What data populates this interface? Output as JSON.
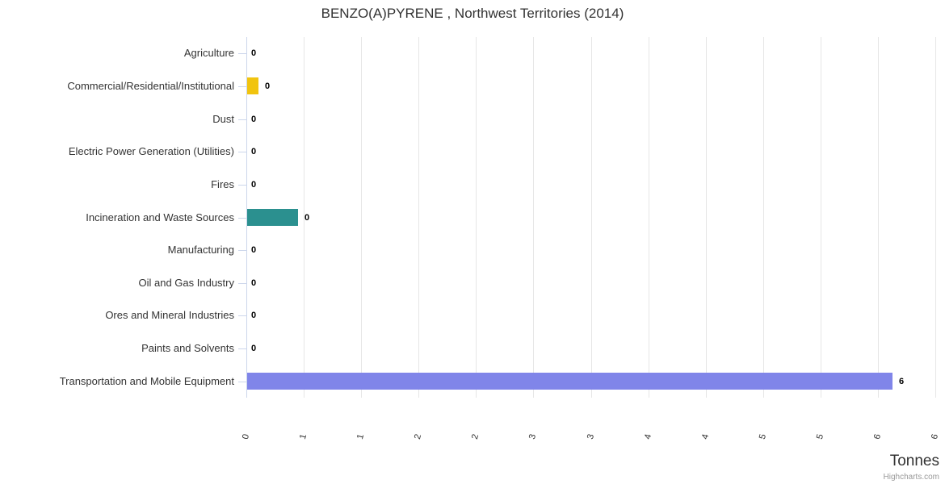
{
  "credit": "Highcharts.com",
  "colors": {
    "axis_line": "#ccd6eb",
    "grid_line": "#e6e6e6",
    "title_text": "#333333",
    "label_text": "#333333",
    "data_label_text": "#000000",
    "credit_text": "#999999"
  },
  "chart_data": {
    "type": "bar",
    "orientation": "horizontal",
    "title": "BENZO(A)PYRENE , Northwest Territories (2014)",
    "xlabel": "Tonnes",
    "ylabel": "",
    "xlim": [
      0,
      6
    ],
    "grid": true,
    "legend": false,
    "categories": [
      "Agriculture",
      "Commercial/Residential/Institutional",
      "Dust",
      "Electric Power Generation (Utilities)",
      "Fires",
      "Incineration and Waste Sources",
      "Manufacturing",
      "Oil and Gas Industry",
      "Ores and Mineral Industries",
      "Paints and Solvents",
      "Transportation and Mobile Equipment"
    ],
    "values": [
      0,
      0.1,
      0,
      0,
      0,
      0.44,
      0,
      0,
      0,
      0,
      5.62
    ],
    "data_labels": [
      "0",
      "0",
      "0",
      "0",
      "0",
      "0",
      "0",
      "0",
      "0",
      "0",
      "6"
    ],
    "bar_colors": [
      null,
      "#f1c40f",
      null,
      null,
      null,
      "#2b908f",
      null,
      null,
      null,
      null,
      "#8085e9"
    ],
    "x_tick_values": [
      0,
      0.5,
      1,
      1.5,
      2,
      2.5,
      3,
      3.5,
      4,
      4.5,
      5,
      5.5,
      6
    ],
    "x_tick_labels": [
      "0",
      "1",
      "1",
      "2",
      "2",
      "3",
      "3",
      "4",
      "4",
      "5",
      "5",
      "6",
      "6"
    ]
  }
}
